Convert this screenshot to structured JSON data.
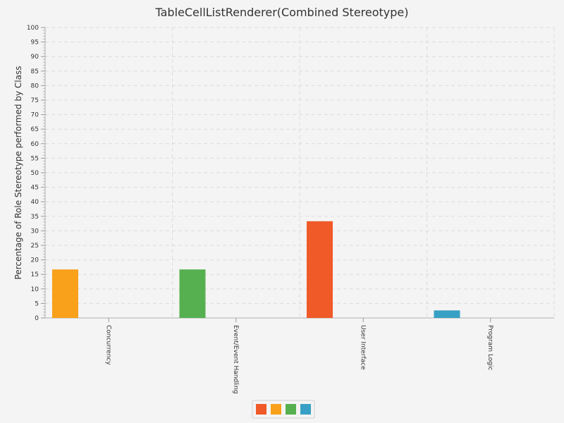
{
  "chart_data": {
    "type": "bar",
    "title": "TableCellListRenderer(Combined Stereotype)",
    "xlabel": "",
    "ylabel": "Percentage of Role Stereotype performed by Class",
    "ylim": [
      0,
      100
    ],
    "ytick_step": 5,
    "grid": true,
    "legend_position": "bottom-center",
    "categories": [
      "Concurrency",
      "Event/Event Handling",
      "User Interface",
      "Program Logic"
    ],
    "series": [
      {
        "color": "#f05a28",
        "values": [
          0,
          0,
          33.3,
          0
        ]
      },
      {
        "color": "#f9a11b",
        "values": [
          16.7,
          0,
          0,
          0
        ]
      },
      {
        "color": "#56b04f",
        "values": [
          0,
          16.7,
          0,
          0
        ]
      },
      {
        "color": "#38a0c4",
        "values": [
          0,
          0,
          0,
          2.6
        ]
      }
    ]
  }
}
